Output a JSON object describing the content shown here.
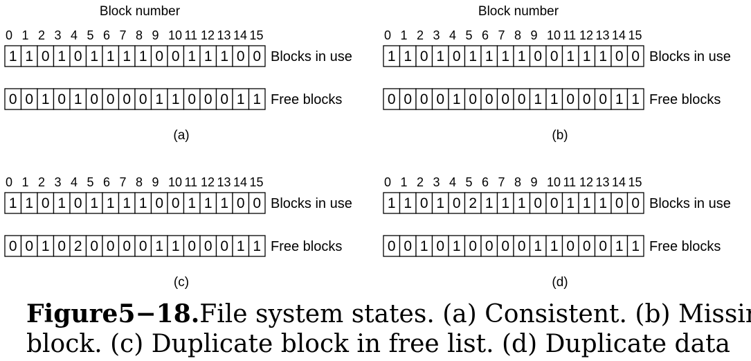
{
  "block_number_label": "Block number",
  "index_labels": [
    "0",
    "1",
    "2",
    "3",
    "4",
    "5",
    "6",
    "7",
    "8",
    "9",
    "10",
    "11",
    "12",
    "13",
    "14",
    "15"
  ],
  "row_labels": {
    "in_use": "Blocks in use",
    "free": "Free blocks"
  },
  "panels": [
    {
      "tag": "(a)",
      "show_header": true,
      "in_use": [
        1,
        1,
        0,
        1,
        0,
        1,
        1,
        1,
        1,
        0,
        0,
        1,
        1,
        1,
        0,
        0
      ],
      "free": [
        0,
        0,
        1,
        0,
        1,
        0,
        0,
        0,
        0,
        1,
        1,
        0,
        0,
        0,
        1,
        1
      ]
    },
    {
      "tag": "(b)",
      "show_header": true,
      "in_use": [
        1,
        1,
        0,
        1,
        0,
        1,
        1,
        1,
        1,
        0,
        0,
        1,
        1,
        1,
        0,
        0
      ],
      "free": [
        0,
        0,
        0,
        0,
        1,
        0,
        0,
        0,
        0,
        1,
        1,
        0,
        0,
        0,
        1,
        1
      ]
    },
    {
      "tag": "(c)",
      "show_header": false,
      "in_use": [
        1,
        1,
        0,
        1,
        0,
        1,
        1,
        1,
        1,
        0,
        0,
        1,
        1,
        1,
        0,
        0
      ],
      "free": [
        0,
        0,
        1,
        0,
        2,
        0,
        0,
        0,
        0,
        1,
        1,
        0,
        0,
        0,
        1,
        1
      ]
    },
    {
      "tag": "(d)",
      "show_header": false,
      "in_use": [
        1,
        1,
        0,
        1,
        0,
        2,
        1,
        1,
        1,
        0,
        0,
        1,
        1,
        1,
        0,
        0
      ],
      "free": [
        0,
        0,
        1,
        0,
        1,
        0,
        0,
        0,
        0,
        1,
        1,
        0,
        0,
        0,
        1,
        1
      ]
    }
  ],
  "caption": {
    "label": "Figure5−18.",
    "line1": "File system states.  (a) Consistent. (b) Missing",
    "line2": "block.  (c) Duplicate block in  free list.  (d) Duplicate data"
  }
}
